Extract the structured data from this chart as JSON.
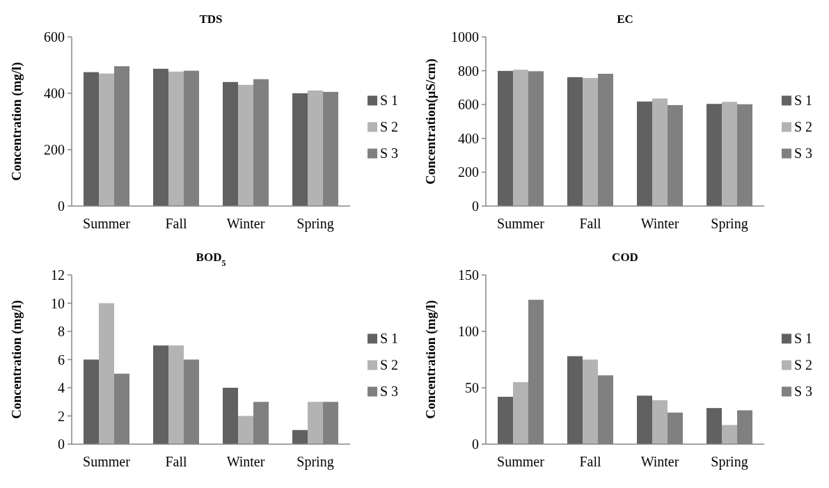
{
  "chart_data": [
    {
      "type": "bar",
      "title": "TDS",
      "ylabel": "Concentration (mg/l)",
      "categories": [
        "Summer",
        "Fall",
        "Winter",
        "Spring"
      ],
      "series": [
        {
          "name": "S 1",
          "color": "#616161",
          "values": [
            475,
            487,
            440,
            400
          ]
        },
        {
          "name": "S 2",
          "color": "#b3b3b3",
          "values": [
            470,
            477,
            430,
            410
          ]
        },
        {
          "name": "S 3",
          "color": "#808080",
          "values": [
            496,
            480,
            450,
            405
          ]
        }
      ],
      "ylim": [
        0,
        600
      ],
      "yticks": [
        0,
        200,
        400,
        600
      ],
      "legend": "right"
    },
    {
      "type": "bar",
      "title": "EC",
      "ylabel": "Concentration(µS/cm)",
      "categories": [
        "Summer",
        "Fall",
        "Winter",
        "Spring"
      ],
      "series": [
        {
          "name": "S 1",
          "color": "#616161",
          "values": [
            799,
            762,
            618,
            604
          ]
        },
        {
          "name": "S 2",
          "color": "#b3b3b3",
          "values": [
            806,
            757,
            636,
            616
          ]
        },
        {
          "name": "S 3",
          "color": "#808080",
          "values": [
            797,
            782,
            597,
            602
          ]
        }
      ],
      "ylim": [
        0,
        1000
      ],
      "yticks": [
        0,
        200,
        400,
        600,
        800,
        1000
      ],
      "legend": "right"
    },
    {
      "type": "bar",
      "title": "BOD$_{5}$",
      "ylabel": "Concentration (mg/l)",
      "categories": [
        "Summer",
        "Fall",
        "Winter",
        "Spring"
      ],
      "series": [
        {
          "name": "S 1",
          "color": "#616161",
          "values": [
            6,
            7,
            4,
            1
          ]
        },
        {
          "name": "S 2",
          "color": "#b3b3b3",
          "values": [
            10,
            7,
            2,
            3
          ]
        },
        {
          "name": "S 3",
          "color": "#808080",
          "values": [
            5,
            6,
            3,
            3
          ]
        }
      ],
      "ylim": [
        0,
        12
      ],
      "yticks": [
        0,
        2,
        4,
        6,
        8,
        10,
        12
      ],
      "legend": "right"
    },
    {
      "type": "bar",
      "title": "COD",
      "ylabel": "Concentration (mg/l)",
      "categories": [
        "Summer",
        "Fall",
        "Winter",
        "Spring"
      ],
      "series": [
        {
          "name": "S 1",
          "color": "#616161",
          "values": [
            42,
            78,
            43,
            32
          ]
        },
        {
          "name": "S 2",
          "color": "#b3b3b3",
          "values": [
            55,
            75,
            39,
            17
          ]
        },
        {
          "name": "S 3",
          "color": "#808080",
          "values": [
            128,
            61,
            28,
            30
          ]
        }
      ],
      "ylim": [
        0,
        150
      ],
      "yticks": [
        0,
        50,
        100,
        150
      ],
      "legend": "right"
    }
  ]
}
